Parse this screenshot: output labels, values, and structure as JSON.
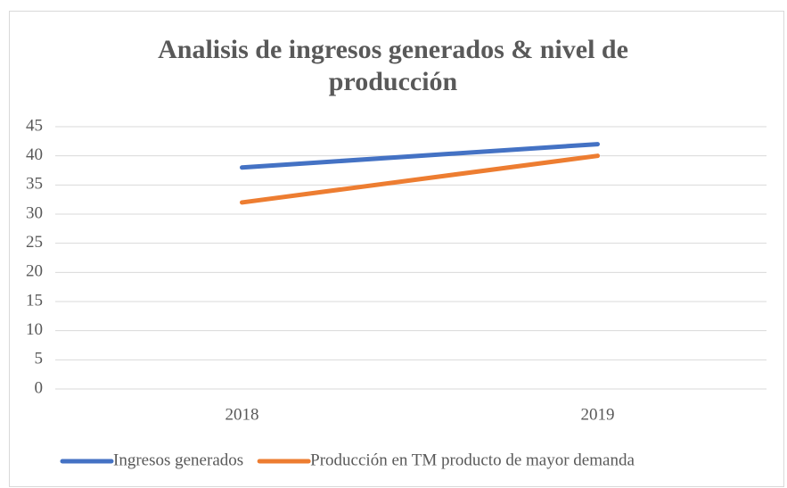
{
  "chart_data": {
    "type": "line",
    "title": "Analisis de ingresos generados & nivel de producción",
    "categories": [
      "2018",
      "2019"
    ],
    "series": [
      {
        "name": "Ingresos generados",
        "color": "#4472c4",
        "values": [
          38,
          42
        ]
      },
      {
        "name": "Producción en TM producto de mayor demanda",
        "color": "#ed7d31",
        "values": [
          32,
          40
        ]
      }
    ],
    "ylim": [
      0,
      45
    ],
    "yticks": [
      0,
      5,
      10,
      15,
      20,
      25,
      30,
      35,
      40,
      45
    ],
    "grid": true,
    "legend": "bottom"
  }
}
